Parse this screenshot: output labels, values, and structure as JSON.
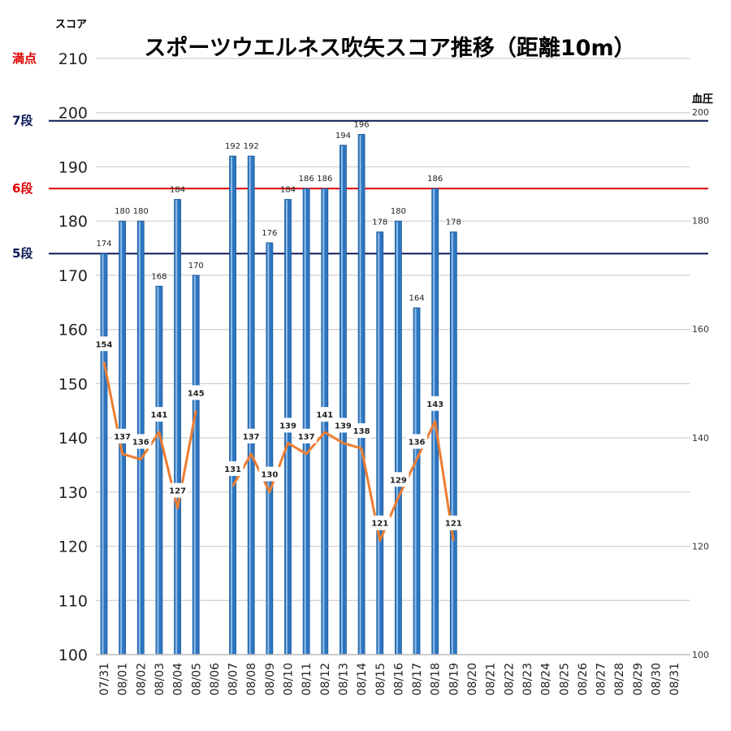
{
  "chart_data": {
    "type": "bar",
    "title": "スポーツウエルネス吹矢スコア推移（距離10m）",
    "ylabel": "スコア",
    "y2label": "血圧",
    "ylim": [
      100,
      210
    ],
    "y2lim": [
      100,
      200
    ],
    "yticks": [
      100,
      110,
      120,
      130,
      140,
      150,
      160,
      170,
      180,
      190,
      200,
      210
    ],
    "y2ticks": [
      100,
      120,
      140,
      160,
      180,
      200
    ],
    "grid": true,
    "categories": [
      "07/31",
      "08/01",
      "08/02",
      "08/03",
      "08/04",
      "08/05",
      "08/06",
      "08/07",
      "08/08",
      "08/09",
      "08/10",
      "08/11",
      "08/12",
      "08/13",
      "08/14",
      "08/15",
      "08/16",
      "08/17",
      "08/18",
      "08/19",
      "08/20",
      "08/21",
      "08/22",
      "08/23",
      "08/24",
      "08/25",
      "08/26",
      "08/27",
      "08/28",
      "08/29",
      "08/30",
      "08/31"
    ],
    "series": [
      {
        "kind": "bar",
        "axis": "left",
        "color": "#2e75c0",
        "values": [
          174,
          180,
          180,
          168,
          184,
          170,
          null,
          192,
          192,
          176,
          184,
          186,
          186,
          194,
          196,
          178,
          180,
          164,
          186,
          178,
          null,
          null,
          null,
          null,
          null,
          null,
          null,
          null,
          null,
          null,
          null,
          null
        ]
      },
      {
        "kind": "line",
        "axis": "right",
        "color": "#ed7d31",
        "values": [
          154,
          137,
          136,
          141,
          127,
          145,
          null,
          131,
          137,
          130,
          139,
          137,
          141,
          139,
          138,
          121,
          129,
          136,
          143,
          121,
          null,
          null,
          null,
          null,
          null,
          null,
          null,
          null,
          null,
          null,
          null,
          null
        ]
      }
    ],
    "reference_lines": [
      {
        "label": "満点",
        "value": 210,
        "color": "#e00000",
        "style": "gridline"
      },
      {
        "label": "7段",
        "value": 198.5,
        "color": "#0b1a55"
      },
      {
        "label": "6段",
        "value": 186,
        "color": "#e00000"
      },
      {
        "label": "5段",
        "value": 174,
        "color": "#0b1a55"
      }
    ]
  }
}
